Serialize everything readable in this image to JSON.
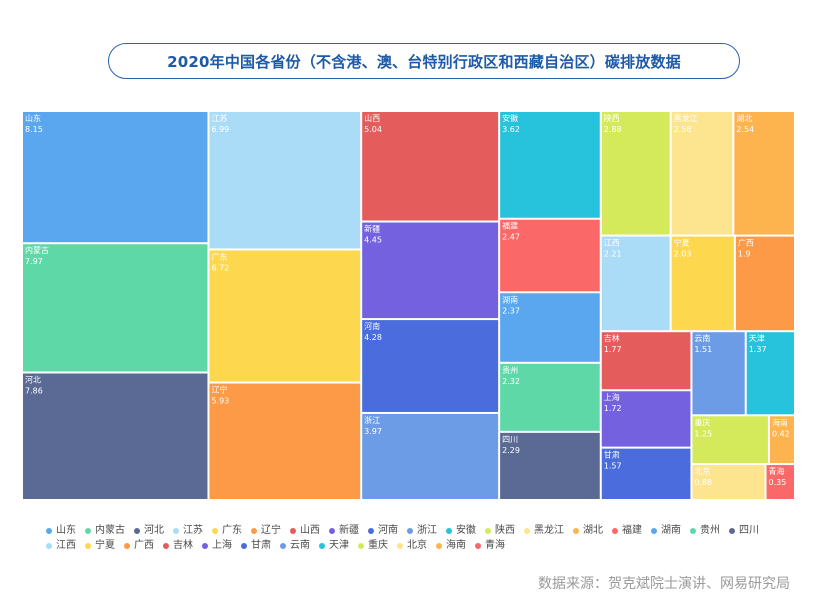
{
  "page_title": "2020年中国各省份（不含港、澳、台特别行政区和西藏自治区）碳排放数据",
  "source": "数据来源：贺克斌院士演讲、网易研究局",
  "chart_data": {
    "type": "treemap",
    "title": "2020年中国各省份（不含港、澳、台特别行政区和西藏自治区）碳排放数据",
    "items": [
      {
        "name": "山东",
        "value": 8.15,
        "color": "#5aa7f0"
      },
      {
        "name": "内蒙古",
        "value": 7.97,
        "color": "#5fd8a8"
      },
      {
        "name": "河北",
        "value": 7.86,
        "color": "#5a6a94"
      },
      {
        "name": "江苏",
        "value": 6.99,
        "color": "#aadcf8"
      },
      {
        "name": "广东",
        "value": 6.72,
        "color": "#fdd84e"
      },
      {
        "name": "辽宁",
        "value": 5.93,
        "color": "#fd9a48"
      },
      {
        "name": "山西",
        "value": 5.04,
        "color": "#e45c5c"
      },
      {
        "name": "新疆",
        "value": 4.45,
        "color": "#7361e0"
      },
      {
        "name": "河南",
        "value": 4.28,
        "color": "#4a6cdc"
      },
      {
        "name": "浙江",
        "value": 3.97,
        "color": "#6d9ce6"
      },
      {
        "name": "安徽",
        "value": 3.62,
        "color": "#27c2dc"
      },
      {
        "name": "陕西",
        "value": 2.88,
        "color": "#d5ea5a"
      },
      {
        "name": "黑龙江",
        "value": 2.58,
        "color": "#fde48e"
      },
      {
        "name": "湖北",
        "value": 2.54,
        "color": "#fdb44e"
      },
      {
        "name": "福建",
        "value": 2.47,
        "color": "#fb6868"
      },
      {
        "name": "湖南",
        "value": 2.37,
        "color": "#5aa7f0"
      },
      {
        "name": "贵州",
        "value": 2.32,
        "color": "#5fd8a8"
      },
      {
        "name": "四川",
        "value": 2.29,
        "color": "#5a6a94"
      },
      {
        "name": "江西",
        "value": 2.21,
        "color": "#aadcf8"
      },
      {
        "name": "宁夏",
        "value": 2.03,
        "color": "#fdd84e"
      },
      {
        "name": "广西",
        "value": 1.9,
        "color": "#fd9a48"
      },
      {
        "name": "吉林",
        "value": 1.77,
        "color": "#e45c5c"
      },
      {
        "name": "上海",
        "value": 1.72,
        "color": "#7361e0"
      },
      {
        "name": "甘肃",
        "value": 1.57,
        "color": "#4a6cdc"
      },
      {
        "name": "云南",
        "value": 1.51,
        "color": "#6d9ce6"
      },
      {
        "name": "天津",
        "value": 1.37,
        "color": "#27c2dc"
      },
      {
        "name": "重庆",
        "value": 1.25,
        "color": "#d5ea5a"
      },
      {
        "name": "北京",
        "value": 0.88,
        "color": "#fde48e"
      },
      {
        "name": "海南",
        "value": 0.42,
        "color": "#fdb44e"
      },
      {
        "name": "青海",
        "value": 0.35,
        "color": "#fb6868"
      }
    ],
    "legend_position": "bottom"
  }
}
